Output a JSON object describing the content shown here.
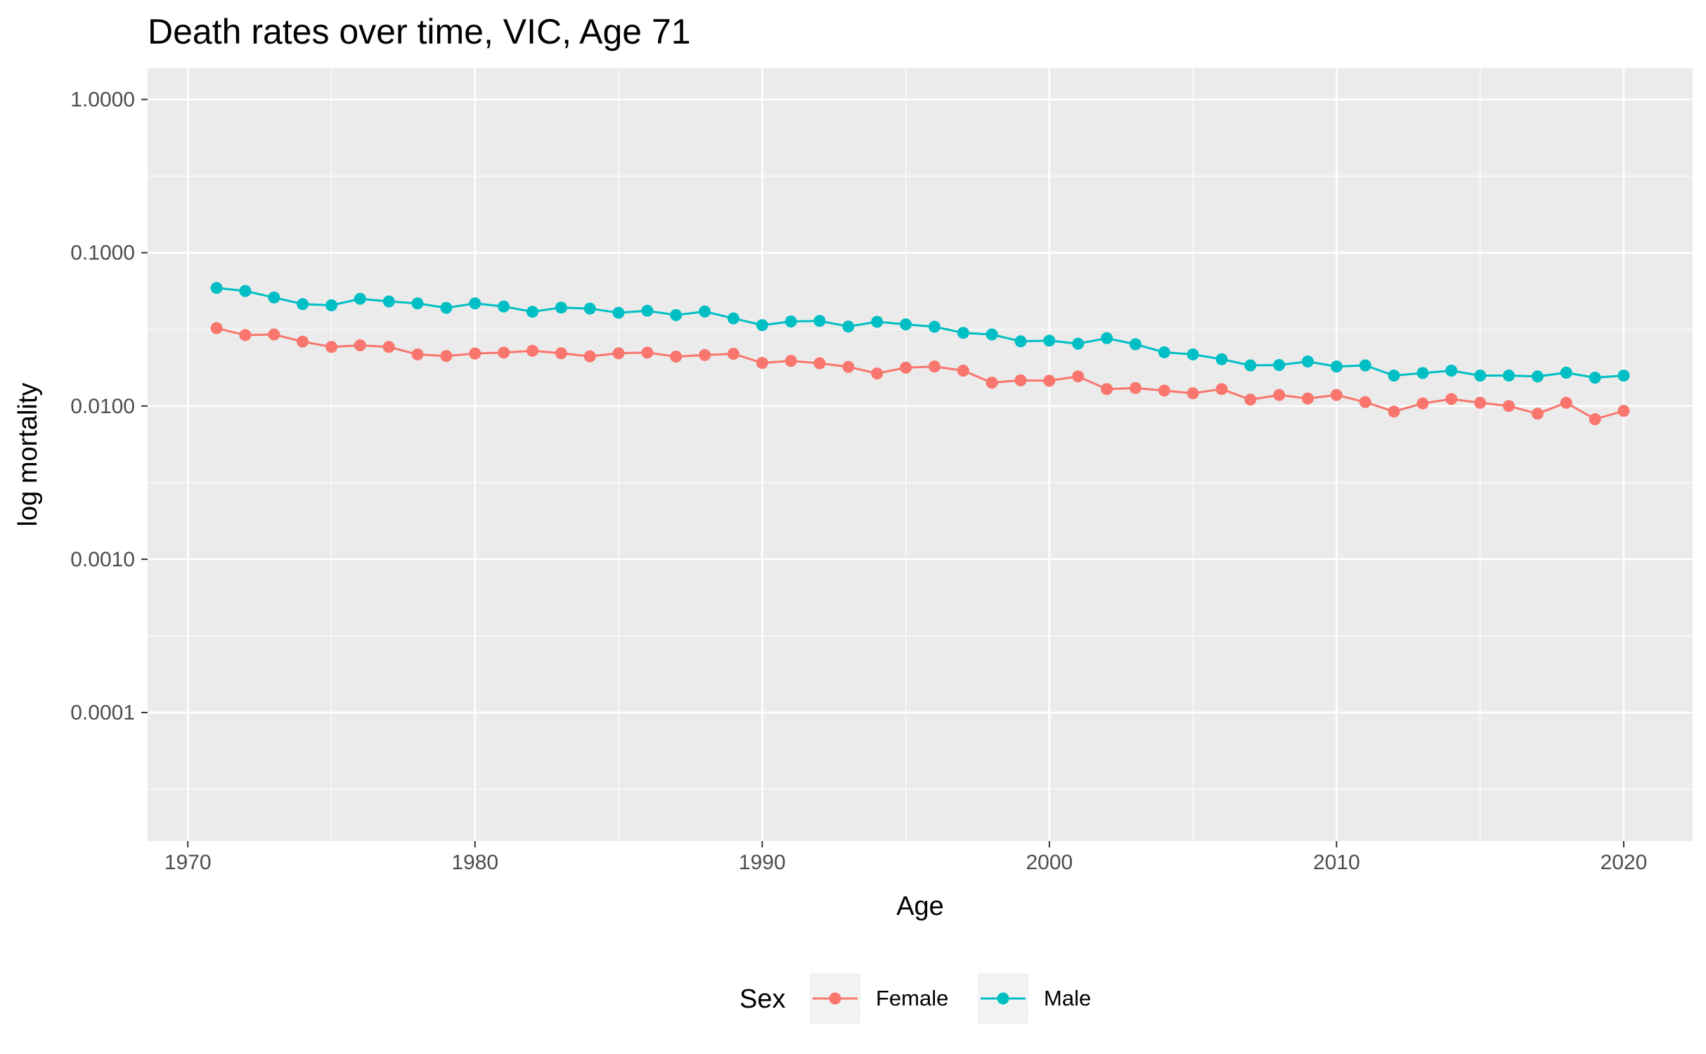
{
  "colors": {
    "panel": "#EBEBEB",
    "grid": "#FFFFFF",
    "tick": "#333333",
    "female": "#F8766D",
    "male": "#00BFC4",
    "legend_key_bg": "#F2F2F2"
  },
  "chart_data": {
    "type": "line",
    "title": "Death rates over time, VIC, Age 71",
    "xlabel": "Age",
    "ylabel": "log mortality",
    "y_scale": "log10",
    "xlim": [
      1968.6,
      2022.4
    ],
    "ylim": [
      1.45e-05,
      1.6
    ],
    "x_ticks": [
      1970,
      1980,
      1990,
      2000,
      2010,
      2020
    ],
    "x_tick_labels": [
      "1970",
      "1980",
      "1990",
      "2000",
      "2010",
      "2020"
    ],
    "y_ticks": [
      0.0001,
      0.001,
      0.01,
      0.1,
      1
    ],
    "y_tick_labels": [
      "0.0001",
      "0.0010",
      "0.0100",
      "0.1000",
      "1.0000"
    ],
    "grid": true,
    "legend": {
      "title": "Sex",
      "position": "bottom",
      "entries": [
        "Female",
        "Male"
      ]
    },
    "x": [
      1971,
      1972,
      1973,
      1974,
      1975,
      1976,
      1977,
      1978,
      1979,
      1980,
      1981,
      1982,
      1983,
      1984,
      1985,
      1986,
      1987,
      1988,
      1989,
      1990,
      1991,
      1992,
      1993,
      1994,
      1995,
      1996,
      1997,
      1998,
      1999,
      2000,
      2001,
      2002,
      2003,
      2004,
      2005,
      2006,
      2007,
      2008,
      2009,
      2010,
      2011,
      2012,
      2013,
      2014,
      2015,
      2016,
      2017,
      2018,
      2019,
      2020
    ],
    "series": [
      {
        "name": "Female",
        "color": "#F8766D",
        "values": [
          0.0322,
          0.029,
          0.0293,
          0.0263,
          0.0243,
          0.0249,
          0.0243,
          0.0217,
          0.0212,
          0.022,
          0.0223,
          0.0229,
          0.0221,
          0.0211,
          0.0221,
          0.0223,
          0.021,
          0.0215,
          0.0219,
          0.0191,
          0.0197,
          0.019,
          0.018,
          0.0163,
          0.0178,
          0.0181,
          0.017,
          0.0142,
          0.0147,
          0.0146,
          0.0156,
          0.0129,
          0.0131,
          0.0126,
          0.0121,
          0.0129,
          0.011,
          0.0118,
          0.0112,
          0.0118,
          0.0106,
          0.0092,
          0.0104,
          0.0111,
          0.0105,
          0.01,
          0.0089,
          0.0105,
          0.0082,
          0.0093
        ]
      },
      {
        "name": "Male",
        "color": "#00BFC4",
        "values": [
          0.0589,
          0.0563,
          0.051,
          0.0462,
          0.0454,
          0.05,
          0.0481,
          0.0467,
          0.0437,
          0.0467,
          0.0446,
          0.0412,
          0.0439,
          0.0432,
          0.0406,
          0.0418,
          0.0392,
          0.0413,
          0.0373,
          0.0337,
          0.0356,
          0.0359,
          0.033,
          0.0354,
          0.0341,
          0.0329,
          0.03,
          0.0293,
          0.0264,
          0.0267,
          0.0255,
          0.0277,
          0.0253,
          0.0224,
          0.0217,
          0.0202,
          0.0184,
          0.0185,
          0.0195,
          0.0181,
          0.0184,
          0.0158,
          0.0164,
          0.017,
          0.0158,
          0.0158,
          0.0156,
          0.0165,
          0.0153,
          0.0158
        ]
      }
    ]
  }
}
